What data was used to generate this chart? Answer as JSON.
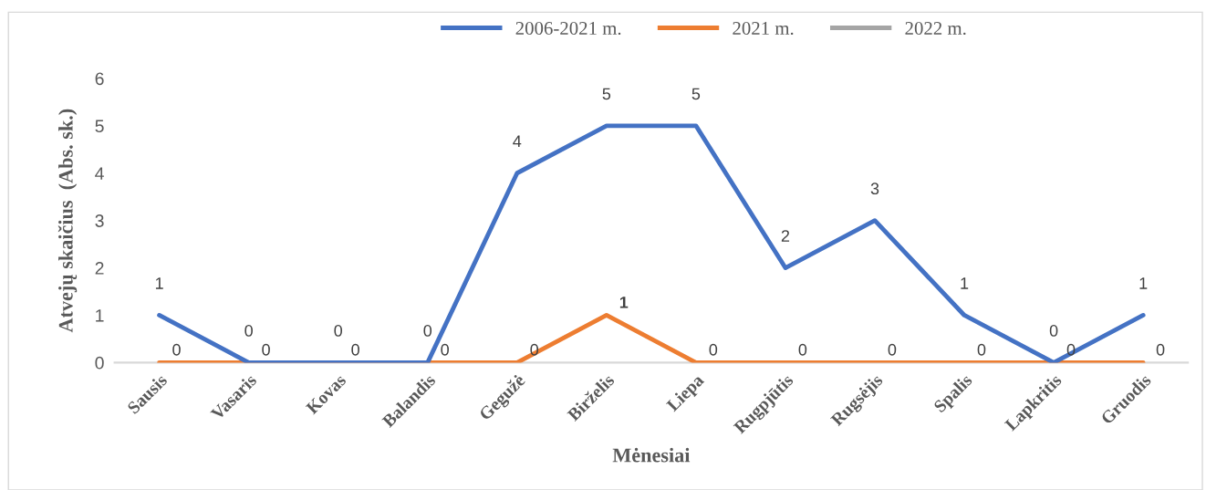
{
  "chart_data": {
    "type": "line",
    "xlabel": "Mėnesiai",
    "ylabel": "Atvejų skaičius  (Abs. sk.)",
    "categories": [
      "Sausis",
      "Vasaris",
      "Kovas",
      "Balandis",
      "Gegužė",
      "Birželis",
      "Liepa",
      "Rugpjūtis",
      "Rugsėjis",
      "Spalis",
      "Lapkritis",
      "Gruodis"
    ],
    "series": [
      {
        "name": "2006-2021 m.",
        "color": "#4472c4",
        "values": [
          1,
          0,
          0,
          0,
          4,
          5,
          5,
          2,
          3,
          1,
          0,
          1
        ]
      },
      {
        "name": "2021 m.",
        "color": "#ed7d31",
        "values": [
          0,
          0,
          0,
          0,
          0,
          1,
          0,
          0,
          0,
          0,
          0,
          0
        ]
      },
      {
        "name": "2022 m.",
        "color": "#a5a5a5",
        "values": [
          null,
          null,
          null,
          null,
          null,
          null,
          null,
          null,
          null,
          null,
          null,
          null
        ]
      }
    ],
    "ylim": [
      0,
      6
    ],
    "yticks": [
      0,
      1,
      2,
      3,
      4,
      5,
      6
    ],
    "grid": false,
    "legend": "top",
    "data_labels": true,
    "marker": "none",
    "line_style": "solid"
  }
}
